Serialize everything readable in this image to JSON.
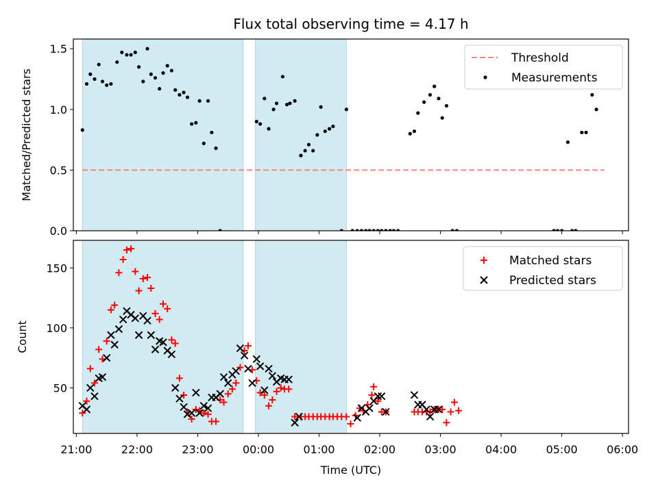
{
  "figure": {
    "title": "Flux total observing time = 4.17 h"
  },
  "chart_data": [
    {
      "type": "scatter",
      "panel": "top",
      "title": "Flux total observing time = 4.17 h",
      "ylabel": "Matched/Predicted stars",
      "xlabel": "",
      "x_unit": "hours after 21:00 UTC",
      "xlim": [
        20.95,
        30.1
      ],
      "ylim": [
        0,
        1.58
      ],
      "yticks": [
        0.0,
        0.5,
        1.0,
        1.5
      ],
      "ytick_labels": [
        "0.0",
        "0.5",
        "1.0",
        "1.5"
      ],
      "shaded_intervals": [
        [
          21.1,
          23.75
        ],
        [
          23.95,
          25.45
        ]
      ],
      "legend": {
        "placement": "top-right",
        "entries": [
          "Threshold",
          "Measurements"
        ]
      },
      "colors": {
        "threshold": "#ff7f7f",
        "measurements": "#000000",
        "shade": "#add8e6"
      },
      "series": [
        {
          "name": "Threshold",
          "kind": "dashed-line",
          "x": [
            21.1,
            29.7
          ],
          "y": [
            0.5,
            0.5
          ]
        },
        {
          "name": "Measurements",
          "kind": "dot",
          "points": [
            [
              21.1,
              0.83
            ],
            [
              21.17,
              1.21
            ],
            [
              21.23,
              1.29
            ],
            [
              21.3,
              1.25
            ],
            [
              21.37,
              1.37
            ],
            [
              21.43,
              1.23
            ],
            [
              21.5,
              1.2
            ],
            [
              21.57,
              1.21
            ],
            [
              21.67,
              1.39
            ],
            [
              21.75,
              1.47
            ],
            [
              21.83,
              1.45
            ],
            [
              21.9,
              1.45
            ],
            [
              21.97,
              1.47
            ],
            [
              22.03,
              1.35
            ],
            [
              22.1,
              1.23
            ],
            [
              22.17,
              1.5
            ],
            [
              22.23,
              1.29
            ],
            [
              22.3,
              1.26
            ],
            [
              22.37,
              1.17
            ],
            [
              22.43,
              1.3
            ],
            [
              22.5,
              1.36
            ],
            [
              22.57,
              1.32
            ],
            [
              22.63,
              1.16
            ],
            [
              22.7,
              1.12
            ],
            [
              22.77,
              1.14
            ],
            [
              22.83,
              1.1
            ],
            [
              22.9,
              0.88
            ],
            [
              22.97,
              0.89
            ],
            [
              23.03,
              1.07
            ],
            [
              23.1,
              0.72
            ],
            [
              23.17,
              1.07
            ],
            [
              23.23,
              0.81
            ],
            [
              23.3,
              0.68
            ],
            [
              23.37,
              0.0
            ],
            [
              23.97,
              0.9
            ],
            [
              24.03,
              0.88
            ],
            [
              24.1,
              1.09
            ],
            [
              24.17,
              0.84
            ],
            [
              24.25,
              1.0
            ],
            [
              24.3,
              1.05
            ],
            [
              24.4,
              1.27
            ],
            [
              24.47,
              1.04
            ],
            [
              24.52,
              1.05
            ],
            [
              24.6,
              1.07
            ],
            [
              24.7,
              0.62
            ],
            [
              24.77,
              0.66
            ],
            [
              24.83,
              0.71
            ],
            [
              24.9,
              0.66
            ],
            [
              24.97,
              0.79
            ],
            [
              25.03,
              1.02
            ],
            [
              25.1,
              0.82
            ],
            [
              25.17,
              0.84
            ],
            [
              25.23,
              0.86
            ],
            [
              25.37,
              0.0
            ],
            [
              25.45,
              1.0
            ],
            [
              25.55,
              0.0
            ],
            [
              25.63,
              0.0
            ],
            [
              25.7,
              0.0
            ],
            [
              25.77,
              0.0
            ],
            [
              25.83,
              0.0
            ],
            [
              25.9,
              0.0
            ],
            [
              25.97,
              0.0
            ],
            [
              26.03,
              0.0
            ],
            [
              26.1,
              0.0
            ],
            [
              26.17,
              0.0
            ],
            [
              26.23,
              0.0
            ],
            [
              26.3,
              0.0
            ],
            [
              26.5,
              0.8
            ],
            [
              26.57,
              0.82
            ],
            [
              26.63,
              0.97
            ],
            [
              26.73,
              1.06
            ],
            [
              26.83,
              1.12
            ],
            [
              26.9,
              1.19
            ],
            [
              26.97,
              1.09
            ],
            [
              27.03,
              0.93
            ],
            [
              27.1,
              1.03
            ],
            [
              27.2,
              0.0
            ],
            [
              27.27,
              0.0
            ],
            [
              28.87,
              0.0
            ],
            [
              28.93,
              0.0
            ],
            [
              29.0,
              0.0
            ],
            [
              29.1,
              0.73
            ],
            [
              29.17,
              0.0
            ],
            [
              29.23,
              0.0
            ],
            [
              29.33,
              0.81
            ],
            [
              29.4,
              0.81
            ],
            [
              29.5,
              1.12
            ],
            [
              29.57,
              1.0
            ]
          ]
        }
      ]
    },
    {
      "type": "scatter",
      "panel": "bottom",
      "ylabel": "Count",
      "xlabel": "Time (UTC)",
      "x_unit": "hours after 21:00 UTC",
      "xlim": [
        20.95,
        30.1
      ],
      "ylim": [
        12,
        173
      ],
      "yticks": [
        50,
        100,
        150
      ],
      "ytick_labels": [
        "50",
        "100",
        "150"
      ],
      "xtick_values": [
        21,
        22,
        23,
        24,
        25,
        26,
        27,
        28,
        29,
        30
      ],
      "xtick_labels": [
        "21:00",
        "22:00",
        "23:00",
        "00:00",
        "01:00",
        "02:00",
        "03:00",
        "04:00",
        "05:00",
        "06:00"
      ],
      "shaded_intervals": [
        [
          21.1,
          23.75
        ],
        [
          23.95,
          25.45
        ]
      ],
      "legend": {
        "placement": "top-right",
        "entries": [
          "Matched stars",
          "Predicted stars"
        ]
      },
      "colors": {
        "matched": "#ff0000",
        "predicted": "#000000",
        "shade": "#add8e6"
      },
      "series": [
        {
          "name": "Matched stars",
          "marker": "+",
          "points": [
            [
              21.1,
              29
            ],
            [
              21.17,
              39
            ],
            [
              21.23,
              66
            ],
            [
              21.3,
              54
            ],
            [
              21.37,
              82
            ],
            [
              21.43,
              74
            ],
            [
              21.5,
              89
            ],
            [
              21.57,
              115
            ],
            [
              21.63,
              119
            ],
            [
              21.7,
              146
            ],
            [
              21.77,
              157
            ],
            [
              21.83,
              165
            ],
            [
              21.9,
              166
            ],
            [
              21.97,
              147
            ],
            [
              22.03,
              131
            ],
            [
              22.1,
              141
            ],
            [
              22.17,
              142
            ],
            [
              22.23,
              133
            ],
            [
              22.3,
              112
            ],
            [
              22.37,
              107
            ],
            [
              22.43,
              120
            ],
            [
              22.5,
              116
            ],
            [
              22.57,
              90
            ],
            [
              22.63,
              87
            ],
            [
              22.7,
              58
            ],
            [
              22.77,
              44
            ],
            [
              22.83,
              30
            ],
            [
              22.9,
              24
            ],
            [
              22.97,
              32
            ],
            [
              23.03,
              31
            ],
            [
              23.1,
              29
            ],
            [
              23.17,
              28
            ],
            [
              23.23,
              22
            ],
            [
              23.3,
              22
            ],
            [
              23.37,
              40
            ],
            [
              23.43,
              38
            ],
            [
              23.5,
              45
            ],
            [
              23.57,
              49
            ],
            [
              23.63,
              54
            ],
            [
              23.7,
              67
            ],
            [
              23.77,
              81
            ],
            [
              23.83,
              85
            ],
            [
              23.9,
              65
            ],
            [
              23.97,
              56
            ],
            [
              24.03,
              46
            ],
            [
              24.1,
              44
            ],
            [
              24.17,
              35
            ],
            [
              24.23,
              40
            ],
            [
              24.3,
              47
            ],
            [
              24.37,
              50
            ],
            [
              24.43,
              49
            ],
            [
              24.5,
              49
            ],
            [
              24.6,
              26
            ],
            [
              24.7,
              26
            ],
            [
              24.77,
              26
            ],
            [
              24.83,
              26
            ],
            [
              24.9,
              26
            ],
            [
              24.97,
              26
            ],
            [
              25.03,
              26
            ],
            [
              25.1,
              26
            ],
            [
              25.17,
              26
            ],
            [
              25.23,
              26
            ],
            [
              25.3,
              26
            ],
            [
              25.37,
              26
            ],
            [
              25.45,
              26
            ],
            [
              25.52,
              20
            ],
            [
              25.6,
              27
            ],
            [
              25.67,
              33
            ],
            [
              25.73,
              31
            ],
            [
              25.8,
              36
            ],
            [
              25.87,
              44
            ],
            [
              25.9,
              51
            ],
            [
              25.97,
              39
            ],
            [
              26.03,
              30
            ],
            [
              26.1,
              30
            ],
            [
              26.57,
              30
            ],
            [
              26.63,
              30
            ],
            [
              26.7,
              30
            ],
            [
              26.77,
              30
            ],
            [
              26.83,
              30
            ],
            [
              26.9,
              32
            ],
            [
              26.97,
              32
            ],
            [
              27.03,
              32
            ],
            [
              27.1,
              21
            ],
            [
              27.17,
              30
            ],
            [
              27.23,
              38
            ],
            [
              27.3,
              31
            ]
          ]
        },
        {
          "name": "Predicted stars",
          "marker": "x",
          "points": [
            [
              21.1,
              35
            ],
            [
              21.17,
              32
            ],
            [
              21.23,
              50
            ],
            [
              21.3,
              43
            ],
            [
              21.37,
              58
            ],
            [
              21.43,
              59
            ],
            [
              21.5,
              75
            ],
            [
              21.57,
              94
            ],
            [
              21.63,
              86
            ],
            [
              21.7,
              99
            ],
            [
              21.77,
              107
            ],
            [
              21.83,
              114
            ],
            [
              21.9,
              111
            ],
            [
              21.97,
              108
            ],
            [
              22.03,
              94
            ],
            [
              22.1,
              110
            ],
            [
              22.17,
              106
            ],
            [
              22.23,
              94
            ],
            [
              22.3,
              82
            ],
            [
              22.37,
              89
            ],
            [
              22.43,
              88
            ],
            [
              22.5,
              81
            ],
            [
              22.57,
              78
            ],
            [
              22.63,
              50
            ],
            [
              22.7,
              41
            ],
            [
              22.77,
              34
            ],
            [
              22.83,
              28
            ],
            [
              22.9,
              29
            ],
            [
              22.97,
              46
            ],
            [
              23.03,
              29
            ],
            [
              23.1,
              35
            ],
            [
              23.17,
              33
            ],
            [
              23.23,
              42
            ],
            [
              23.3,
              42
            ],
            [
              23.37,
              45
            ],
            [
              23.43,
              59
            ],
            [
              23.5,
              54
            ],
            [
              23.57,
              61
            ],
            [
              23.63,
              64
            ],
            [
              23.7,
              83
            ],
            [
              23.77,
              77
            ],
            [
              23.83,
              66
            ],
            [
              23.9,
              54
            ],
            [
              23.97,
              74
            ],
            [
              24.03,
              68
            ],
            [
              24.1,
              48
            ],
            [
              24.17,
              66
            ],
            [
              24.23,
              60
            ],
            [
              24.3,
              55
            ],
            [
              24.37,
              58
            ],
            [
              24.43,
              57
            ],
            [
              24.5,
              57
            ],
            [
              24.6,
              21
            ],
            [
              24.67,
              26
            ],
            [
              25.63,
              25
            ],
            [
              25.7,
              33
            ],
            [
              25.77,
              30
            ],
            [
              25.83,
              33
            ],
            [
              25.9,
              39
            ],
            [
              25.97,
              43
            ],
            [
              26.03,
              43
            ],
            [
              26.1,
              30
            ],
            [
              26.57,
              44
            ],
            [
              26.63,
              36
            ],
            [
              26.7,
              36
            ],
            [
              26.77,
              32
            ],
            [
              26.83,
              26
            ],
            [
              26.9,
              32
            ],
            [
              26.97,
              32
            ]
          ]
        }
      ]
    }
  ]
}
